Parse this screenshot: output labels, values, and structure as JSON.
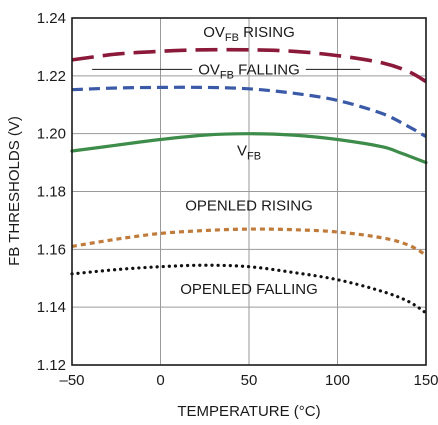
{
  "chart_data": {
    "type": "line",
    "xlabel": "TEMPERATURE (°C)",
    "ylabel": "FB THRESHOLDS (V)",
    "xlim": [
      -50,
      150
    ],
    "ylim": [
      1.12,
      1.24
    ],
    "xticks": [
      -50,
      0,
      50,
      100,
      150
    ],
    "xtick_labels": [
      "–50",
      "0",
      "50",
      "100",
      "150"
    ],
    "yticks": [
      1.12,
      1.14,
      1.16,
      1.18,
      1.2,
      1.22,
      1.24
    ],
    "ytick_labels": [
      "1.12",
      "1.14",
      "1.16",
      "1.18",
      "1.20",
      "1.22",
      "1.24"
    ],
    "grid": true,
    "series": [
      {
        "id": "ov-rising",
        "color": "#8b1a3a",
        "dash": "long-dash",
        "x": [
          -50,
          -25,
          0,
          25,
          50,
          75,
          100,
          125,
          140,
          150
        ],
        "values": [
          1.2255,
          1.2275,
          1.2285,
          1.229,
          1.229,
          1.2285,
          1.227,
          1.2245,
          1.2215,
          1.218
        ]
      },
      {
        "id": "ov-falling",
        "color": "#3a5aa8",
        "dash": "dash",
        "x": [
          -50,
          -25,
          0,
          25,
          50,
          75,
          100,
          125,
          140,
          150
        ],
        "values": [
          1.2152,
          1.2158,
          1.216,
          1.216,
          1.2155,
          1.214,
          1.2115,
          1.207,
          1.2025,
          1.199
        ]
      },
      {
        "id": "vfb",
        "color": "#3d8c4a",
        "dash": "solid",
        "x": [
          -50,
          -25,
          0,
          25,
          50,
          75,
          100,
          125,
          135,
          150
        ],
        "values": [
          1.194,
          1.196,
          1.198,
          1.1995,
          1.2,
          1.1995,
          1.198,
          1.1955,
          1.1935,
          1.19
        ]
      },
      {
        "id": "openled-rising",
        "color": "#c07a3a",
        "dash": "short-dash",
        "x": [
          -50,
          -25,
          0,
          25,
          50,
          75,
          100,
          125,
          140,
          150
        ],
        "values": [
          1.161,
          1.1635,
          1.1655,
          1.1665,
          1.167,
          1.1668,
          1.166,
          1.164,
          1.1615,
          1.158
        ]
      },
      {
        "id": "openled-falling",
        "color": "#111111",
        "dash": "dot",
        "x": [
          -50,
          -25,
          0,
          25,
          50,
          75,
          100,
          125,
          140,
          150
        ],
        "values": [
          1.1515,
          1.153,
          1.154,
          1.1545,
          1.154,
          1.152,
          1.1495,
          1.1455,
          1.142,
          1.138
        ]
      }
    ],
    "annotations": [
      {
        "id": "ann-ov-rising",
        "prefix": "OV",
        "sub": "FB",
        "suffix": " RISING",
        "x": 50,
        "y": 1.2335,
        "leader": false
      },
      {
        "id": "ann-ov-falling",
        "prefix": "OV",
        "sub": "FB",
        "suffix": " FALLING",
        "x": 50,
        "y": 1.2205,
        "leader": true
      },
      {
        "id": "ann-vfb",
        "prefix": "V",
        "sub": "FB",
        "suffix": "",
        "x": 50,
        "y": 1.1925,
        "leader": false
      },
      {
        "id": "ann-openled-rising",
        "prefix": "OPENLED RISING",
        "sub": "",
        "suffix": "",
        "x": 50,
        "y": 1.1735,
        "leader": false
      },
      {
        "id": "ann-openled-falling",
        "prefix": "OPENLED FALLING",
        "sub": "",
        "suffix": "",
        "x": 50,
        "y": 1.1445,
        "leader": false
      }
    ]
  }
}
